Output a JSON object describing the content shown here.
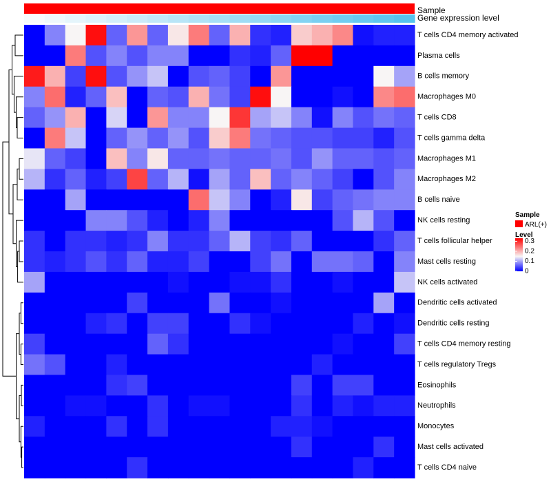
{
  "chart_data": {
    "type": "heatmap",
    "annotations": [
      {
        "name": "Sample",
        "kind": "categorical",
        "value": "ARL(+)"
      },
      {
        "name": "Gene expression level",
        "kind": "gradient"
      }
    ],
    "rows": [
      "T cells CD4 memory activated",
      "Plasma cells",
      "B cells memory",
      "Macrophages M0",
      "T cells CD8",
      "T cells gamma delta",
      "Macrophages M1",
      "Macrophages M2",
      "B cells naive",
      "NK cells resting",
      "T cells follicular helper",
      "Mast cells resting",
      "NK cells activated",
      "Dendritic cells activated",
      "Dendritic cells resting",
      "T cells CD4 memory resting",
      "T cells regulatory  Tregs",
      "Eosinophils",
      "Neutrophils",
      "Monocytes",
      "Mast cells activated",
      "T cells CD4 naive"
    ],
    "n_columns": 19,
    "values": [
      [
        0.0,
        0.08,
        0.15,
        0.32,
        0.06,
        0.22,
        0.06,
        0.16,
        0.24,
        0.06,
        0.2,
        0.03,
        0.02,
        0.18,
        0.2,
        0.23,
        0.01,
        0.02,
        0.02
      ],
      [
        0.0,
        0.0,
        0.24,
        0.05,
        0.08,
        0.05,
        0.08,
        0.08,
        0.0,
        0.0,
        0.03,
        0.02,
        0.06,
        0.33,
        0.33,
        0.0,
        0.0,
        0.0,
        0.0
      ],
      [
        0.31,
        0.2,
        0.04,
        0.32,
        0.05,
        0.09,
        0.12,
        0.0,
        0.05,
        0.06,
        0.04,
        0.0,
        0.22,
        0.0,
        0.0,
        0.0,
        0.0,
        0.15,
        0.1
      ],
      [
        0.08,
        0.25,
        0.02,
        0.06,
        0.19,
        0.0,
        0.06,
        0.05,
        0.2,
        0.07,
        0.04,
        0.32,
        0.15,
        0.0,
        0.0,
        0.01,
        0.0,
        0.23,
        0.25
      ],
      [
        0.06,
        0.09,
        0.2,
        0.0,
        0.13,
        0.0,
        0.22,
        0.08,
        0.08,
        0.15,
        0.29,
        0.1,
        0.12,
        0.08,
        0.01,
        0.08,
        0.05,
        0.07,
        0.06
      ],
      [
        0.0,
        0.24,
        0.12,
        0.0,
        0.06,
        0.09,
        0.06,
        0.09,
        0.05,
        0.18,
        0.24,
        0.07,
        0.06,
        0.05,
        0.05,
        0.04,
        0.04,
        0.02,
        0.05
      ],
      [
        0.14,
        0.06,
        0.04,
        0.0,
        0.19,
        0.08,
        0.16,
        0.06,
        0.06,
        0.07,
        0.06,
        0.06,
        0.07,
        0.05,
        0.09,
        0.06,
        0.06,
        0.05,
        0.06
      ],
      [
        0.11,
        0.03,
        0.06,
        0.02,
        0.04,
        0.28,
        0.06,
        0.11,
        0.01,
        0.1,
        0.06,
        0.19,
        0.06,
        0.08,
        0.06,
        0.04,
        0.0,
        0.05,
        0.08
      ],
      [
        0.0,
        0.0,
        0.1,
        0.0,
        0.0,
        0.0,
        0.0,
        0.0,
        0.25,
        0.12,
        0.08,
        0.0,
        0.02,
        0.16,
        0.04,
        0.06,
        0.07,
        0.08,
        0.08
      ],
      [
        0.0,
        0.0,
        0.0,
        0.08,
        0.08,
        0.05,
        0.02,
        0.0,
        0.02,
        0.08,
        0.0,
        0.0,
        0.0,
        0.0,
        0.0,
        0.05,
        0.11,
        0.05,
        0.0
      ],
      [
        0.03,
        0.0,
        0.03,
        0.03,
        0.02,
        0.03,
        0.08,
        0.03,
        0.03,
        0.06,
        0.11,
        0.04,
        0.03,
        0.06,
        0.0,
        0.0,
        0.0,
        0.03,
        0.06
      ],
      [
        0.03,
        0.02,
        0.03,
        0.05,
        0.03,
        0.06,
        0.02,
        0.02,
        0.04,
        0.0,
        0.0,
        0.04,
        0.07,
        0.0,
        0.07,
        0.07,
        0.06,
        0.0,
        0.08
      ],
      [
        0.1,
        0.0,
        0.0,
        0.0,
        0.0,
        0.0,
        0.0,
        0.01,
        0.0,
        0.0,
        0.01,
        0.01,
        0.03,
        0.0,
        0.0,
        0.01,
        0.0,
        0.0,
        0.12
      ],
      [
        0.0,
        0.0,
        0.0,
        0.0,
        0.0,
        0.04,
        0.0,
        0.0,
        0.0,
        0.07,
        0.0,
        0.0,
        0.01,
        0.0,
        0.0,
        0.0,
        0.0,
        0.1,
        0.0
      ],
      [
        0.0,
        0.0,
        0.0,
        0.02,
        0.03,
        0.0,
        0.04,
        0.04,
        0.0,
        0.0,
        0.03,
        0.01,
        0.0,
        0.0,
        0.0,
        0.0,
        0.02,
        0.0,
        0.01
      ],
      [
        0.04,
        0.0,
        0.0,
        0.0,
        0.0,
        0.0,
        0.06,
        0.03,
        0.0,
        0.0,
        0.0,
        0.0,
        0.0,
        0.0,
        0.0,
        0.01,
        0.0,
        0.0,
        0.04
      ],
      [
        0.07,
        0.05,
        0.0,
        0.0,
        0.02,
        0.0,
        0.0,
        0.0,
        0.0,
        0.0,
        0.0,
        0.0,
        0.0,
        0.0,
        0.02,
        0.0,
        0.0,
        0.0,
        0.0
      ],
      [
        0.0,
        0.0,
        0.0,
        0.0,
        0.03,
        0.04,
        0.0,
        0.0,
        0.0,
        0.0,
        0.0,
        0.0,
        0.0,
        0.04,
        0.0,
        0.04,
        0.04,
        0.0,
        0.0
      ],
      [
        0.0,
        0.0,
        0.01,
        0.01,
        0.0,
        0.0,
        0.03,
        0.0,
        0.01,
        0.01,
        0.0,
        0.0,
        0.0,
        0.03,
        0.0,
        0.02,
        0.01,
        0.02,
        0.02
      ],
      [
        0.02,
        0.0,
        0.0,
        0.0,
        0.03,
        0.0,
        0.03,
        0.0,
        0.0,
        0.0,
        0.0,
        0.0,
        0.02,
        0.02,
        0.01,
        0.0,
        0.0,
        0.0,
        0.0
      ],
      [
        0.0,
        0.0,
        0.0,
        0.0,
        0.0,
        0.0,
        0.0,
        0.0,
        0.0,
        0.0,
        0.0,
        0.0,
        0.0,
        0.03,
        0.0,
        0.0,
        0.0,
        0.03,
        0.0
      ],
      [
        0.0,
        0.0,
        0.0,
        0.0,
        0.0,
        0.03,
        0.0,
        0.0,
        0.0,
        0.0,
        0.0,
        0.0,
        0.0,
        0.0,
        0.0,
        0.0,
        0.02,
        0.0,
        0.0
      ]
    ],
    "color_scale": {
      "min": 0,
      "mid": 0.15,
      "max": 0.33,
      "low": "#0000ff",
      "midColor": "#f8f5f5",
      "high": "#ff0000"
    },
    "annotation_colors": {
      "sample": "#ff0000",
      "gene_low": "#f7fbfd",
      "gene_high": "#56c3ee"
    },
    "legend": {
      "sample_title": "Sample",
      "sample_items": [
        {
          "label": "ARL(+)",
          "color": "#ff0000"
        }
      ],
      "level_title": "Level",
      "level_ticks": [
        {
          "value": 0.3,
          "label": "0.3"
        },
        {
          "value": 0.2,
          "label": "0.2"
        },
        {
          "value": 0.1,
          "label": "0.1"
        },
        {
          "value": 0,
          "label": "0"
        }
      ],
      "level_range": [
        0,
        0.33
      ]
    }
  }
}
